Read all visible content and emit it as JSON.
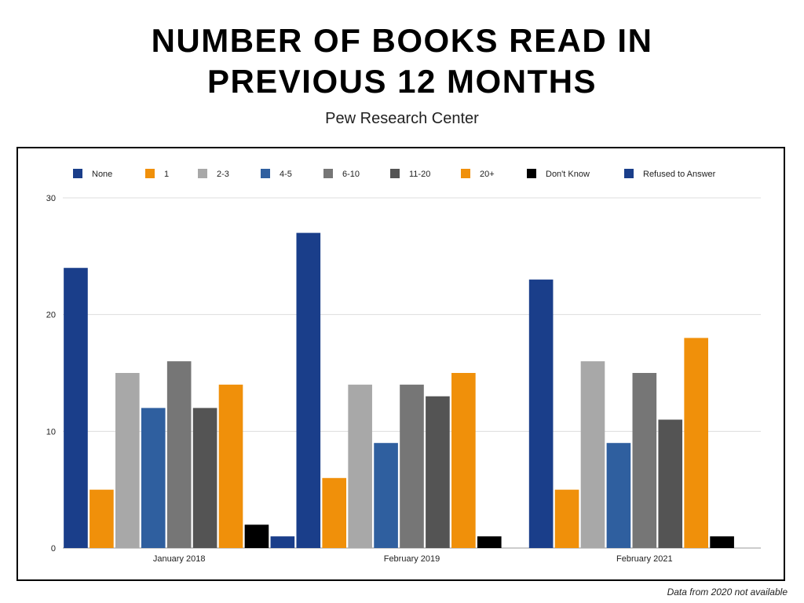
{
  "title_line1": "NUMBER OF BOOKS READ IN",
  "title_line2": "PREVIOUS 12 MONTHS",
  "subtitle": "Pew Research Center",
  "footnote": "Data from 2020 not available",
  "chart_data": {
    "type": "bar",
    "categories": [
      "January 2018",
      "February 2019",
      "February 2021"
    ],
    "series": [
      {
        "name": "None",
        "color": "#1a3e8a",
        "values": [
          24,
          27,
          23
        ]
      },
      {
        "name": "1",
        "color": "#f0900a",
        "values": [
          5,
          6,
          5
        ]
      },
      {
        "name": "2-3",
        "color": "#a8a8a8",
        "values": [
          15,
          14,
          16
        ]
      },
      {
        "name": "4-5",
        "color": "#2f5f9f",
        "values": [
          12,
          9,
          9
        ]
      },
      {
        "name": "6-10",
        "color": "#767676",
        "values": [
          16,
          14,
          15
        ]
      },
      {
        "name": "11-20",
        "color": "#545454",
        "values": [
          12,
          13,
          11
        ]
      },
      {
        "name": "20+",
        "color": "#f0900a",
        "values": [
          14,
          15,
          18
        ]
      },
      {
        "name": "Don't Know",
        "color": "#000000",
        "values": [
          2,
          1,
          1
        ]
      },
      {
        "name": "Refused to Answer",
        "color": "#1a3e8a",
        "values": [
          1,
          0,
          0
        ]
      }
    ],
    "yticks": [
      0,
      10,
      20,
      30
    ],
    "ylim": [
      0,
      30
    ],
    "grid": true,
    "legend_position": "top"
  }
}
